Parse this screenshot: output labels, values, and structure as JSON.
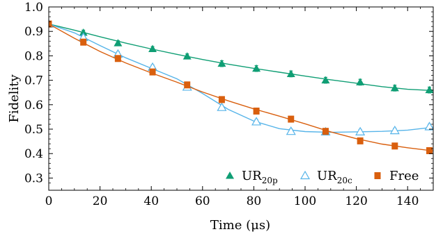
{
  "chart_data": {
    "type": "scatter",
    "xlabel": "Time (μs)",
    "ylabel": "Fidelity",
    "xlim": [
      0,
      150
    ],
    "ylim": [
      0.25,
      1.0
    ],
    "x_ticks": [
      0,
      20,
      40,
      60,
      80,
      100,
      120,
      140
    ],
    "y_ticks": [
      0.3,
      0.4,
      0.5,
      0.6,
      0.7,
      0.8,
      0.9,
      1.0
    ],
    "x_tick_labels": [
      "0",
      "20",
      "40",
      "60",
      "80",
      "100",
      "120",
      "140"
    ],
    "y_tick_labels": [
      "0.3",
      "0.4",
      "0.5",
      "0.6",
      "0.7",
      "0.8",
      "0.9",
      "1.0"
    ],
    "grid": false,
    "legend_position": "bottom-right",
    "series": [
      {
        "name": "UR20p",
        "name_base": "UR",
        "name_sub": "20p",
        "marker": "filled-triangle",
        "color": "#0f9e74",
        "points": [
          {
            "x": 0,
            "y": 0.93,
            "err": 0.01
          },
          {
            "x": 13.5,
            "y": 0.895,
            "err": 0.01
          },
          {
            "x": 27,
            "y": 0.852,
            "err": 0.01
          },
          {
            "x": 40.5,
            "y": 0.828,
            "err": 0.01
          },
          {
            "x": 54,
            "y": 0.798,
            "err": 0.01
          },
          {
            "x": 67.5,
            "y": 0.768,
            "err": 0.012
          },
          {
            "x": 81,
            "y": 0.748,
            "err": 0.012
          },
          {
            "x": 94.5,
            "y": 0.726,
            "err": 0.012
          },
          {
            "x": 108,
            "y": 0.7,
            "err": 0.012
          },
          {
            "x": 121.5,
            "y": 0.692,
            "err": 0.012
          },
          {
            "x": 135,
            "y": 0.668,
            "err": 0.012
          },
          {
            "x": 148.5,
            "y": 0.66,
            "err": 0.012
          }
        ],
        "fit": [
          [
            0,
            0.93
          ],
          [
            10,
            0.905
          ],
          [
            20,
            0.878
          ],
          [
            30,
            0.852
          ],
          [
            40,
            0.828
          ],
          [
            50,
            0.806
          ],
          [
            60,
            0.785
          ],
          [
            70,
            0.766
          ],
          [
            80,
            0.749
          ],
          [
            90,
            0.733
          ],
          [
            100,
            0.717
          ],
          [
            110,
            0.702
          ],
          [
            120,
            0.688
          ],
          [
            130,
            0.674
          ],
          [
            140,
            0.663
          ],
          [
            150,
            0.658
          ]
        ]
      },
      {
        "name": "UR20c",
        "name_base": "UR",
        "name_sub": "20c",
        "marker": "open-triangle",
        "color": "#56b4e9",
        "points": [
          {
            "x": 0,
            "y": 0.93,
            "err": 0.01
          },
          {
            "x": 13.5,
            "y": 0.875,
            "err": 0.01
          },
          {
            "x": 27,
            "y": 0.807,
            "err": 0.01
          },
          {
            "x": 40.5,
            "y": 0.753,
            "err": 0.01
          },
          {
            "x": 54,
            "y": 0.672,
            "err": 0.01
          },
          {
            "x": 67.5,
            "y": 0.589,
            "err": 0.01
          },
          {
            "x": 81,
            "y": 0.53,
            "err": 0.01
          },
          {
            "x": 94.5,
            "y": 0.491,
            "err": 0.01
          },
          {
            "x": 108,
            "y": 0.489,
            "err": 0.01
          },
          {
            "x": 121.5,
            "y": 0.489,
            "err": 0.01
          },
          {
            "x": 135,
            "y": 0.494,
            "err": 0.01
          },
          {
            "x": 148.5,
            "y": 0.51,
            "err": 0.01
          }
        ],
        "fit": [
          [
            0,
            0.93
          ],
          [
            10,
            0.894
          ],
          [
            20,
            0.842
          ],
          [
            30,
            0.792
          ],
          [
            40,
            0.749
          ],
          [
            50,
            0.706
          ],
          [
            60,
            0.646
          ],
          [
            70,
            0.581
          ],
          [
            80,
            0.533
          ],
          [
            90,
            0.502
          ],
          [
            100,
            0.49
          ],
          [
            110,
            0.487
          ],
          [
            120,
            0.489
          ],
          [
            130,
            0.491
          ],
          [
            140,
            0.496
          ],
          [
            150,
            0.508
          ]
        ]
      },
      {
        "name": "Free",
        "marker": "filled-square",
        "color": "#d95f0e",
        "points": [
          {
            "x": 0,
            "y": 0.93,
            "err": 0.01
          },
          {
            "x": 13.5,
            "y": 0.856,
            "err": 0.01
          },
          {
            "x": 27,
            "y": 0.789,
            "err": 0.01
          },
          {
            "x": 40.5,
            "y": 0.734,
            "err": 0.01
          },
          {
            "x": 54,
            "y": 0.681,
            "err": 0.01
          },
          {
            "x": 67.5,
            "y": 0.621,
            "err": 0.01
          },
          {
            "x": 81,
            "y": 0.574,
            "err": 0.01
          },
          {
            "x": 94.5,
            "y": 0.541,
            "err": 0.01
          },
          {
            "x": 108,
            "y": 0.491,
            "err": 0.01
          },
          {
            "x": 121.5,
            "y": 0.452,
            "err": 0.01
          },
          {
            "x": 135,
            "y": 0.431,
            "err": 0.01
          },
          {
            "x": 148.5,
            "y": 0.412,
            "err": 0.01
          }
        ],
        "fit": [
          [
            0,
            0.93
          ],
          [
            10,
            0.872
          ],
          [
            20,
            0.818
          ],
          [
            30,
            0.771
          ],
          [
            40,
            0.73
          ],
          [
            50,
            0.692
          ],
          [
            60,
            0.652
          ],
          [
            70,
            0.616
          ],
          [
            80,
            0.583
          ],
          [
            90,
            0.553
          ],
          [
            100,
            0.522
          ],
          [
            110,
            0.489
          ],
          [
            120,
            0.461
          ],
          [
            130,
            0.439
          ],
          [
            140,
            0.424
          ],
          [
            150,
            0.411
          ]
        ]
      }
    ]
  }
}
